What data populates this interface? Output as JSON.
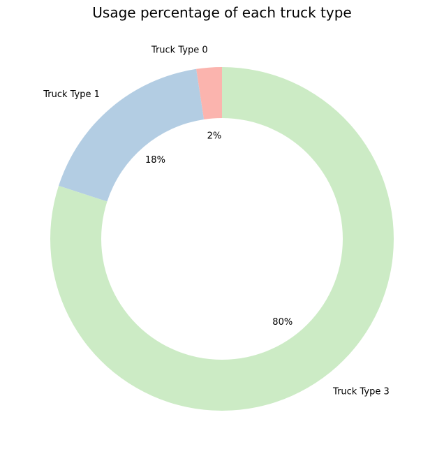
{
  "chart_data": {
    "type": "pie",
    "title": "Usage percentage of each truck type",
    "labels": [
      "Truck Type 0",
      "Truck Type 1",
      "Truck Type 3"
    ],
    "values": [
      2.4,
      17.6,
      80.0
    ],
    "percent_labels": [
      "2%",
      "18%",
      "80%"
    ],
    "colors": [
      "#fbb4ae",
      "#b3cde3",
      "#ccebc5"
    ],
    "donut": true,
    "start_angle_deg": 90,
    "direction": "counterclockwise"
  }
}
